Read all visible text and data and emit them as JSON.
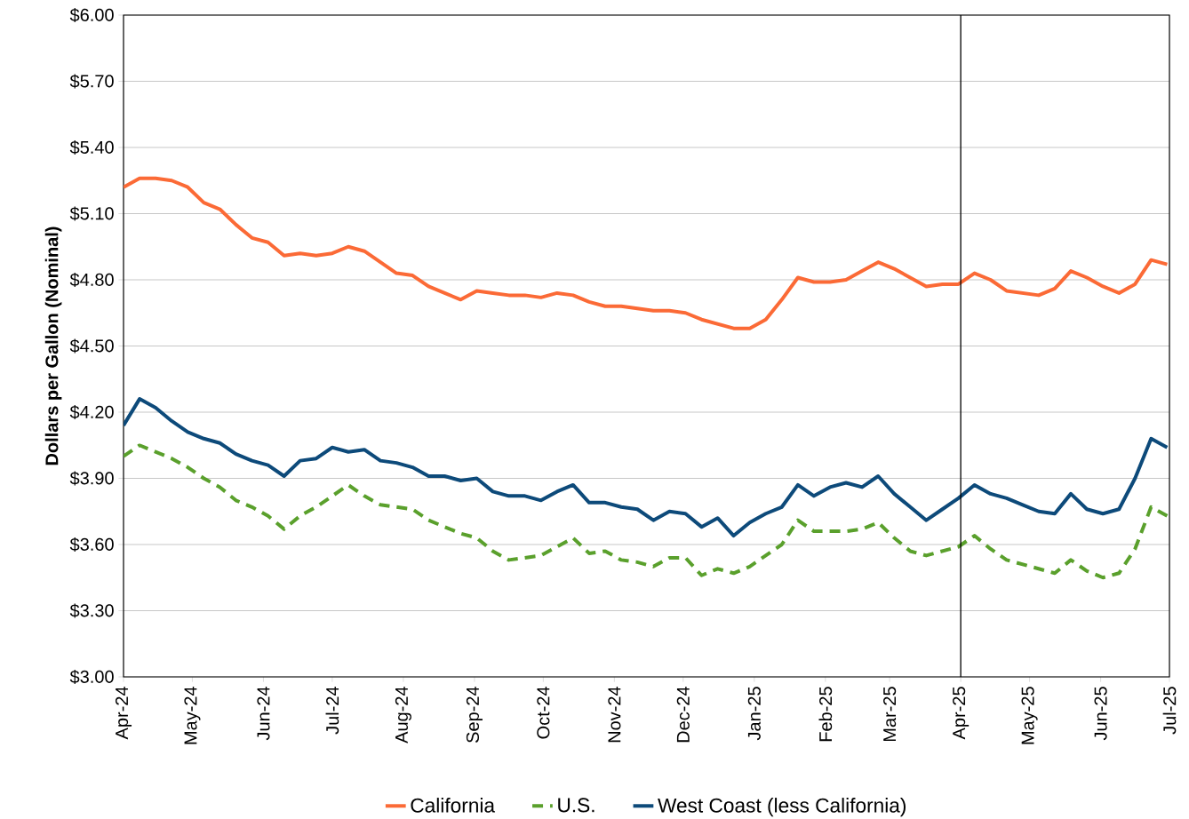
{
  "chart_data": {
    "type": "line",
    "ylabel": "Dollars per Gallon (Nominal)",
    "x": [
      "2024-04-01",
      "2024-04-08",
      "2024-04-15",
      "2024-04-22",
      "2024-04-29",
      "2024-05-06",
      "2024-05-13",
      "2024-05-20",
      "2024-05-27",
      "2024-06-03",
      "2024-06-10",
      "2024-06-17",
      "2024-06-24",
      "2024-07-01",
      "2024-07-08",
      "2024-07-15",
      "2024-07-22",
      "2024-07-29",
      "2024-08-05",
      "2024-08-12",
      "2024-08-19",
      "2024-08-26",
      "2024-09-02",
      "2024-09-09",
      "2024-09-16",
      "2024-09-23",
      "2024-09-30",
      "2024-10-07",
      "2024-10-14",
      "2024-10-21",
      "2024-10-28",
      "2024-11-04",
      "2024-11-11",
      "2024-11-18",
      "2024-11-25",
      "2024-12-02",
      "2024-12-09",
      "2024-12-16",
      "2024-12-23",
      "2024-12-30",
      "2025-01-06",
      "2025-01-13",
      "2025-01-20",
      "2025-01-27",
      "2025-02-03",
      "2025-02-10",
      "2025-02-17",
      "2025-02-24",
      "2025-03-03",
      "2025-03-10",
      "2025-03-17",
      "2025-03-24",
      "2025-03-31",
      "2025-04-07",
      "2025-04-14",
      "2025-04-21",
      "2025-04-28",
      "2025-05-05",
      "2025-05-12",
      "2025-05-19",
      "2025-05-26",
      "2025-06-02",
      "2025-06-09",
      "2025-06-16",
      "2025-06-23",
      "2025-06-30"
    ],
    "series": [
      {
        "name": "California",
        "color": "#fb6a36",
        "line_style": "solid",
        "values": [
          5.22,
          5.26,
          5.26,
          5.25,
          5.22,
          5.15,
          5.12,
          5.05,
          4.99,
          4.97,
          4.91,
          4.92,
          4.91,
          4.92,
          4.95,
          4.93,
          4.88,
          4.83,
          4.82,
          4.77,
          4.74,
          4.71,
          4.75,
          4.74,
          4.73,
          4.73,
          4.72,
          4.74,
          4.73,
          4.7,
          4.68,
          4.68,
          4.67,
          4.66,
          4.66,
          4.65,
          4.62,
          4.6,
          4.58,
          4.58,
          4.62,
          4.71,
          4.81,
          4.79,
          4.79,
          4.8,
          4.84,
          4.88,
          4.85,
          4.81,
          4.77,
          4.78,
          4.78,
          4.83,
          4.8,
          4.75,
          4.74,
          4.73,
          4.76,
          4.84,
          4.81,
          4.77,
          4.74,
          4.78,
          4.89,
          4.87
        ]
      },
      {
        "name": "U.S.",
        "color": "#5aa02c",
        "line_style": "dashed",
        "values": [
          4.0,
          4.05,
          4.02,
          3.99,
          3.95,
          3.9,
          3.86,
          3.8,
          3.77,
          3.73,
          3.67,
          3.73,
          3.77,
          3.82,
          3.87,
          3.82,
          3.78,
          3.77,
          3.76,
          3.71,
          3.68,
          3.65,
          3.63,
          3.57,
          3.53,
          3.54,
          3.55,
          3.59,
          3.63,
          3.56,
          3.57,
          3.53,
          3.52,
          3.5,
          3.54,
          3.54,
          3.46,
          3.49,
          3.47,
          3.5,
          3.55,
          3.6,
          3.71,
          3.66,
          3.66,
          3.66,
          3.67,
          3.7,
          3.63,
          3.57,
          3.55,
          3.57,
          3.59,
          3.64,
          3.58,
          3.53,
          3.51,
          3.49,
          3.47,
          3.53,
          3.48,
          3.45,
          3.47,
          3.58,
          3.77,
          3.73
        ]
      },
      {
        "name": "West Coast (less California)",
        "color": "#0d4a7a",
        "line_style": "solid",
        "values": [
          4.14,
          4.26,
          4.22,
          4.16,
          4.11,
          4.08,
          4.06,
          4.01,
          3.98,
          3.96,
          3.91,
          3.98,
          3.99,
          4.04,
          4.02,
          4.03,
          3.98,
          3.97,
          3.95,
          3.91,
          3.91,
          3.89,
          3.9,
          3.84,
          3.82,
          3.82,
          3.8,
          3.84,
          3.87,
          3.79,
          3.79,
          3.77,
          3.76,
          3.71,
          3.75,
          3.74,
          3.68,
          3.72,
          3.64,
          3.7,
          3.74,
          3.77,
          3.87,
          3.82,
          3.86,
          3.88,
          3.86,
          3.91,
          3.83,
          3.77,
          3.71,
          3.76,
          3.81,
          3.87,
          3.83,
          3.81,
          3.78,
          3.75,
          3.74,
          3.83,
          3.76,
          3.74,
          3.76,
          3.9,
          4.08,
          4.04
        ]
      }
    ],
    "xlim": [
      "2024-04-01",
      "2025-07-01"
    ],
    "xticks": [
      {
        "value": "2024-04-01",
        "label": "Apr-24"
      },
      {
        "value": "2024-05-01",
        "label": "May-24"
      },
      {
        "value": "2024-06-01",
        "label": "Jun-24"
      },
      {
        "value": "2024-07-01",
        "label": "Jul-24"
      },
      {
        "value": "2024-08-01",
        "label": "Aug-24"
      },
      {
        "value": "2024-09-01",
        "label": "Sep-24"
      },
      {
        "value": "2024-10-01",
        "label": "Oct-24"
      },
      {
        "value": "2024-11-01",
        "label": "Nov-24"
      },
      {
        "value": "2024-12-01",
        "label": "Dec-24"
      },
      {
        "value": "2025-01-01",
        "label": "Jan-25"
      },
      {
        "value": "2025-02-01",
        "label": "Feb-25"
      },
      {
        "value": "2025-03-01",
        "label": "Mar-25"
      },
      {
        "value": "2025-04-01",
        "label": "Apr-25"
      },
      {
        "value": "2025-05-01",
        "label": "May-25"
      },
      {
        "value": "2025-06-01",
        "label": "Jun-25"
      },
      {
        "value": "2025-07-01",
        "label": "Jul-25"
      }
    ],
    "ylim": [
      3.0,
      6.0
    ],
    "yticks": [
      {
        "value": 3.0,
        "label": "$3.00"
      },
      {
        "value": 3.3,
        "label": "$3.30"
      },
      {
        "value": 3.6,
        "label": "$3.60"
      },
      {
        "value": 3.9,
        "label": "$3.90"
      },
      {
        "value": 4.2,
        "label": "$4.20"
      },
      {
        "value": 4.5,
        "label": "$4.50"
      },
      {
        "value": 4.8,
        "label": "$4.80"
      },
      {
        "value": 5.1,
        "label": "$5.10"
      },
      {
        "value": 5.4,
        "label": "$5.40"
      },
      {
        "value": 5.7,
        "label": "$5.70"
      },
      {
        "value": 6.0,
        "label": "$6.00"
      }
    ],
    "ref_lines": [
      {
        "axis": "x",
        "value": "2025-04-01",
        "color": "#000000"
      }
    ],
    "grid": "y",
    "legend": "bottom",
    "marker": "none"
  }
}
